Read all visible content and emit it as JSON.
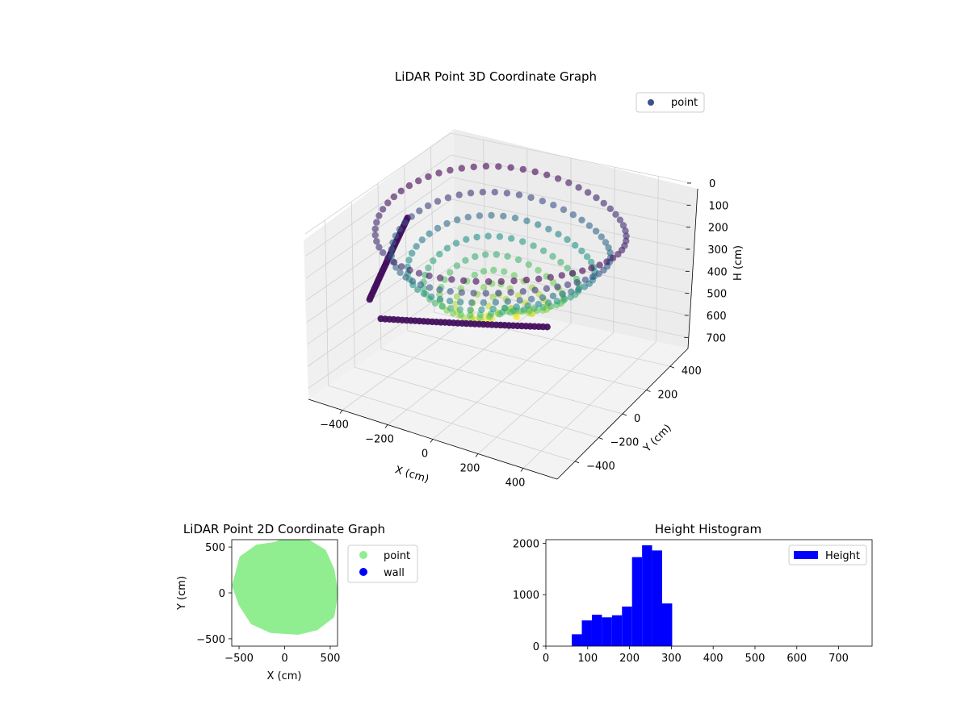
{
  "figure": {
    "background": "#ffffff"
  },
  "chart_data": [
    {
      "id": "plot3d",
      "type": "scatter",
      "title": "LiDAR Point 3D Coordinate Graph",
      "xlabel": "X (cm)",
      "ylabel": "Y (cm)",
      "zlabel": "H (cm)",
      "x_ticks": [
        "−400",
        "−200",
        "0",
        "200",
        "400"
      ],
      "y_ticks": [
        "−400",
        "−200",
        "0",
        "200",
        "400"
      ],
      "z_ticks": [
        "0",
        "100",
        "200",
        "300",
        "400",
        "500",
        "600",
        "700"
      ],
      "xlim": [
        -550,
        550
      ],
      "ylim": [
        -550,
        550
      ],
      "zlim": [
        0,
        750
      ],
      "z_inverted": true,
      "colormap": "viridis",
      "legend": {
        "placement": "top-right",
        "entries": [
          {
            "name": "point",
            "color": "#3b528b"
          }
        ]
      },
      "grid": true,
      "series": [
        {
          "name": "point",
          "shape": "bowl-shaped room scan, rim near H 0-100, floor near H 300-450",
          "sample_points": [
            {
              "x": -450,
              "y": 50,
              "h": 150
            },
            {
              "x": -400,
              "y": 250,
              "h": 90
            },
            {
              "x": -250,
              "y": 400,
              "h": 60
            },
            {
              "x": 0,
              "y": 480,
              "h": 40
            },
            {
              "x": 250,
              "y": 420,
              "h": 60
            },
            {
              "x": 420,
              "y": 250,
              "h": 120
            },
            {
              "x": 480,
              "y": 0,
              "h": 200
            },
            {
              "x": 400,
              "y": -250,
              "h": 260
            },
            {
              "x": 200,
              "y": -420,
              "h": 330
            },
            {
              "x": -100,
              "y": -450,
              "h": 360
            },
            {
              "x": -350,
              "y": -250,
              "h": 300
            },
            {
              "x": 0,
              "y": 0,
              "h": 420
            },
            {
              "x": 100,
              "y": -150,
              "h": 400
            },
            {
              "x": -150,
              "y": 100,
              "h": 380
            }
          ]
        }
      ]
    },
    {
      "id": "plot2d",
      "type": "scatter",
      "title": "LiDAR Point 2D Coordinate Graph",
      "xlabel": "X (cm)",
      "ylabel": "Y (cm)",
      "xlim": [
        -580,
        580
      ],
      "ylim": [
        -580,
        580
      ],
      "x_ticks": [
        -500,
        0,
        500
      ],
      "y_ticks": [
        -500,
        0,
        500
      ],
      "x_tick_labels": [
        "−500",
        "0",
        "500"
      ],
      "y_tick_labels": [
        "−500",
        "0",
        "500"
      ],
      "legend": {
        "placement": "outside-right",
        "entries": [
          {
            "name": "point",
            "color": "#90ee90"
          },
          {
            "name": "wall",
            "color": "#0000ff"
          }
        ]
      },
      "series": [
        {
          "name": "point",
          "color": "#90ee90",
          "outline": [
            [
              -470,
              380
            ],
            [
              -300,
              500
            ],
            [
              -100,
              530
            ],
            [
              50,
              590
            ],
            [
              250,
              560
            ],
            [
              430,
              450
            ],
            [
              520,
              250
            ],
            [
              560,
              0
            ],
            [
              520,
              -250
            ],
            [
              350,
              -380
            ],
            [
              150,
              -430
            ],
            [
              -150,
              -410
            ],
            [
              -350,
              -320
            ],
            [
              -480,
              -120
            ],
            [
              -550,
              80
            ]
          ]
        },
        {
          "name": "wall",
          "color": "#0000ff",
          "points": []
        }
      ]
    },
    {
      "id": "hist",
      "type": "bar",
      "title": "Height Histogram",
      "xlim": [
        0,
        780
      ],
      "ylim": [
        0,
        2070
      ],
      "x_ticks": [
        0,
        100,
        200,
        300,
        400,
        500,
        600,
        700
      ],
      "x_tick_labels": [
        "0",
        "100",
        "200",
        "300",
        "400",
        "500",
        "600",
        "700"
      ],
      "y_ticks": [
        0,
        1000,
        2000
      ],
      "y_tick_labels": [
        "0",
        "1000",
        "2000"
      ],
      "color": "#0000ff",
      "legend": {
        "placement": "top-right",
        "entries": [
          {
            "name": "Height",
            "color": "#0000ff"
          }
        ]
      },
      "series": [
        {
          "name": "Height",
          "bins": [
            {
              "x0": 62,
              "x1": 86,
              "value": 230
            },
            {
              "x0": 86,
              "x1": 110,
              "value": 500
            },
            {
              "x0": 110,
              "x1": 134,
              "value": 610
            },
            {
              "x0": 134,
              "x1": 158,
              "value": 560
            },
            {
              "x0": 158,
              "x1": 182,
              "value": 600
            },
            {
              "x0": 182,
              "x1": 206,
              "value": 770
            },
            {
              "x0": 206,
              "x1": 230,
              "value": 1730
            },
            {
              "x0": 230,
              "x1": 254,
              "value": 1960
            },
            {
              "x0": 254,
              "x1": 278,
              "value": 1860
            },
            {
              "x0": 278,
              "x1": 302,
              "value": 830
            }
          ]
        }
      ]
    }
  ]
}
